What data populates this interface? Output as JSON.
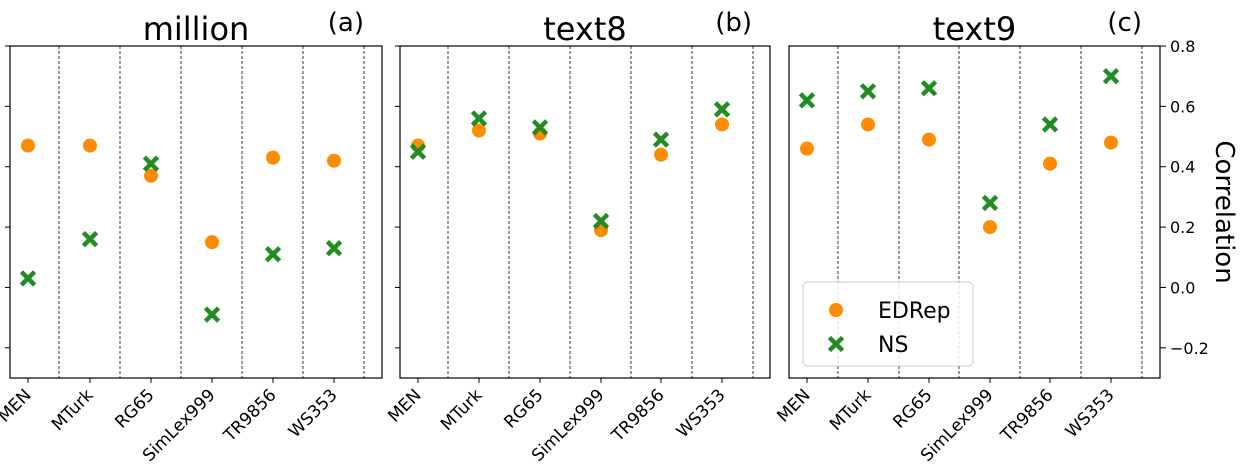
{
  "chart_data": [
    {
      "type": "scatter",
      "title": "million",
      "panel_label": "(a)",
      "categories": [
        "MEN",
        "MTurk",
        "RG65",
        "SimLex999",
        "TR9856",
        "WS353"
      ],
      "ylim": [
        -0.3,
        0.8
      ],
      "grid": "vertical dashed separators",
      "series": [
        {
          "name": "EDRep",
          "marker": "circle",
          "color": "#ff8c00",
          "values": [
            0.47,
            0.47,
            0.37,
            0.15,
            0.43,
            0.42
          ]
        },
        {
          "name": "NS",
          "marker": "x",
          "color": "#228b22",
          "values": [
            0.03,
            0.16,
            0.41,
            -0.09,
            0.11,
            0.13
          ]
        }
      ]
    },
    {
      "type": "scatter",
      "title": "text8",
      "panel_label": "(b)",
      "categories": [
        "MEN",
        "MTurk",
        "RG65",
        "SimLex999",
        "TR9856",
        "WS353"
      ],
      "ylim": [
        -0.3,
        0.8
      ],
      "grid": "vertical dashed separators",
      "series": [
        {
          "name": "EDRep",
          "marker": "circle",
          "color": "#ff8c00",
          "values": [
            0.47,
            0.52,
            0.51,
            0.19,
            0.44,
            0.54
          ]
        },
        {
          "name": "NS",
          "marker": "x",
          "color": "#228b22",
          "values": [
            0.45,
            0.56,
            0.53,
            0.22,
            0.49,
            0.59
          ]
        }
      ]
    },
    {
      "type": "scatter",
      "title": "text9",
      "panel_label": "(c)",
      "categories": [
        "MEN",
        "MTurk",
        "RG65",
        "SimLex999",
        "TR9856",
        "WS353"
      ],
      "ylim": [
        -0.3,
        0.8
      ],
      "ylabel": "Correlation",
      "yticks": [
        "0.8",
        "0.6",
        "0.4",
        "0.2",
        "0.0",
        "−0.2"
      ],
      "ytick_values": [
        0.8,
        0.6,
        0.4,
        0.2,
        0.0,
        -0.2
      ],
      "grid": "vertical dashed separators",
      "legend": {
        "placement": "bottom-left",
        "entries": [
          "EDRep",
          "NS"
        ]
      },
      "series": [
        {
          "name": "EDRep",
          "marker": "circle",
          "color": "#ff8c00",
          "values": [
            0.46,
            0.54,
            0.49,
            0.2,
            0.41,
            0.48
          ]
        },
        {
          "name": "NS",
          "marker": "x",
          "color": "#228b22",
          "values": [
            0.62,
            0.65,
            0.66,
            0.28,
            0.54,
            0.7
          ]
        }
      ]
    }
  ]
}
